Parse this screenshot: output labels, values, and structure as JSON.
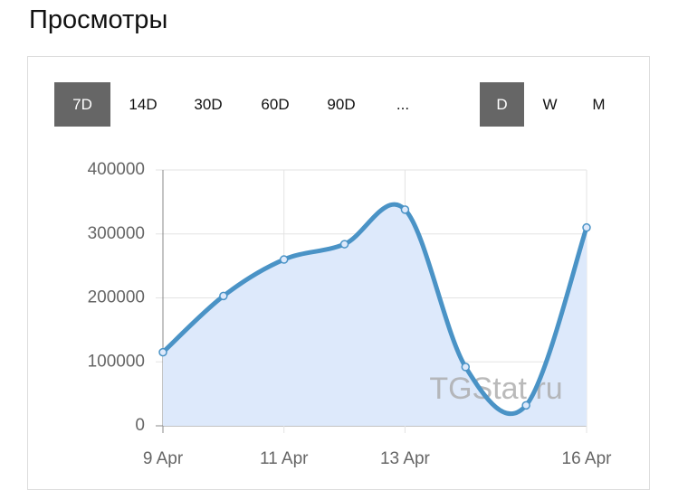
{
  "title": "Просмотры",
  "range_buttons": [
    {
      "label": "7D",
      "active": true
    },
    {
      "label": "14D",
      "active": false
    },
    {
      "label": "30D",
      "active": false
    },
    {
      "label": "60D",
      "active": false
    },
    {
      "label": "90D",
      "active": false
    },
    {
      "label": "...",
      "active": false
    }
  ],
  "period_buttons": [
    {
      "label": "D",
      "active": true
    },
    {
      "label": "W",
      "active": false
    },
    {
      "label": "M",
      "active": false
    }
  ],
  "watermark": "TGStat.ru",
  "chart_data": {
    "type": "line",
    "categories": [
      "9 Apr",
      null,
      "11 Apr",
      null,
      "13 Apr",
      null,
      null,
      "16 Apr"
    ],
    "series": [
      {
        "name": "Просмотры",
        "color": "#4a93c6",
        "fill": "#dde9fb",
        "values": [
          115000,
          203000,
          260000,
          284000,
          338000,
          92000,
          32000,
          310000
        ]
      }
    ],
    "ylim": [
      0,
      400000
    ],
    "yticks": [
      0,
      100000,
      200000,
      300000,
      400000
    ],
    "grid": true
  }
}
